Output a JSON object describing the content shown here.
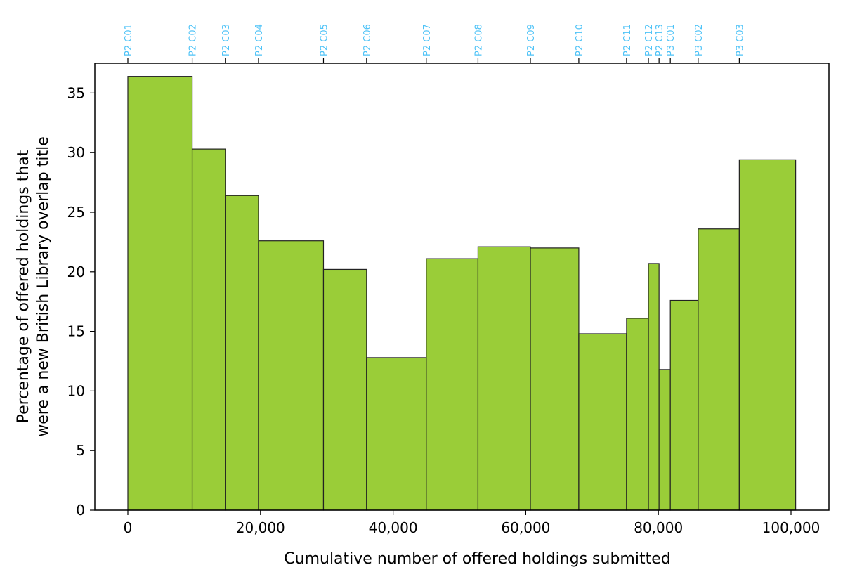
{
  "chart_data": {
    "type": "bar",
    "xlabel": "Cumulative number of offered holdings submitted",
    "ylabel_lines": [
      "Percentage of offered holdings that",
      "were a new British Library overlap title"
    ],
    "xlim": [
      -5000,
      107000
    ],
    "ylim": [
      0,
      37.5
    ],
    "grid": false,
    "x_ticks": [
      0,
      20000,
      40000,
      60000,
      80000,
      100000
    ],
    "x_tick_labels": [
      "0",
      "20,000",
      "40,000",
      "60,000",
      "80,000",
      "100,000"
    ],
    "y_ticks": [
      0,
      5,
      10,
      15,
      20,
      25,
      30,
      35
    ],
    "y_tick_labels": [
      "0",
      "5",
      "10",
      "15",
      "20",
      "25",
      "30",
      "35"
    ],
    "bar_color": "#9acd38",
    "edge_color": "#222222",
    "top_label_color": "#4fc3f7",
    "bars": [
      {
        "label": "P2 C01",
        "start": 0,
        "end": 9700,
        "value": 36.4
      },
      {
        "label": "P2 C02",
        "start": 9700,
        "end": 14700,
        "value": 30.3
      },
      {
        "label": "P2 C03",
        "start": 14700,
        "end": 19700,
        "value": 26.4
      },
      {
        "label": "P2 C04",
        "start": 19700,
        "end": 29500,
        "value": 22.6
      },
      {
        "label": "P2 C05",
        "start": 29500,
        "end": 36000,
        "value": 20.2
      },
      {
        "label": "P2 C06",
        "start": 36000,
        "end": 45000,
        "value": 12.8
      },
      {
        "label": "P2 C07",
        "start": 45000,
        "end": 52800,
        "value": 21.1
      },
      {
        "label": "P2 C08",
        "start": 52800,
        "end": 60700,
        "value": 22.1
      },
      {
        "label": "P2 C09",
        "start": 60700,
        "end": 68000,
        "value": 22.0
      },
      {
        "label": "P2 C10",
        "start": 68000,
        "end": 75200,
        "value": 14.8
      },
      {
        "label": "P2 C11",
        "start": 75200,
        "end": 78500,
        "value": 16.1
      },
      {
        "label": "P2 C12",
        "start": 78500,
        "end": 80100,
        "value": 20.7
      },
      {
        "label": "P2 C13",
        "start": 80100,
        "end": 81800,
        "value": 11.8
      },
      {
        "label": "P3 C01",
        "start": 81800,
        "end": 86000,
        "value": 17.6
      },
      {
        "label": "P3 C02",
        "start": 86000,
        "end": 92200,
        "value": 23.6
      },
      {
        "label": "P3 C03",
        "start": 92200,
        "end": 100700,
        "value": 29.4
      }
    ]
  }
}
